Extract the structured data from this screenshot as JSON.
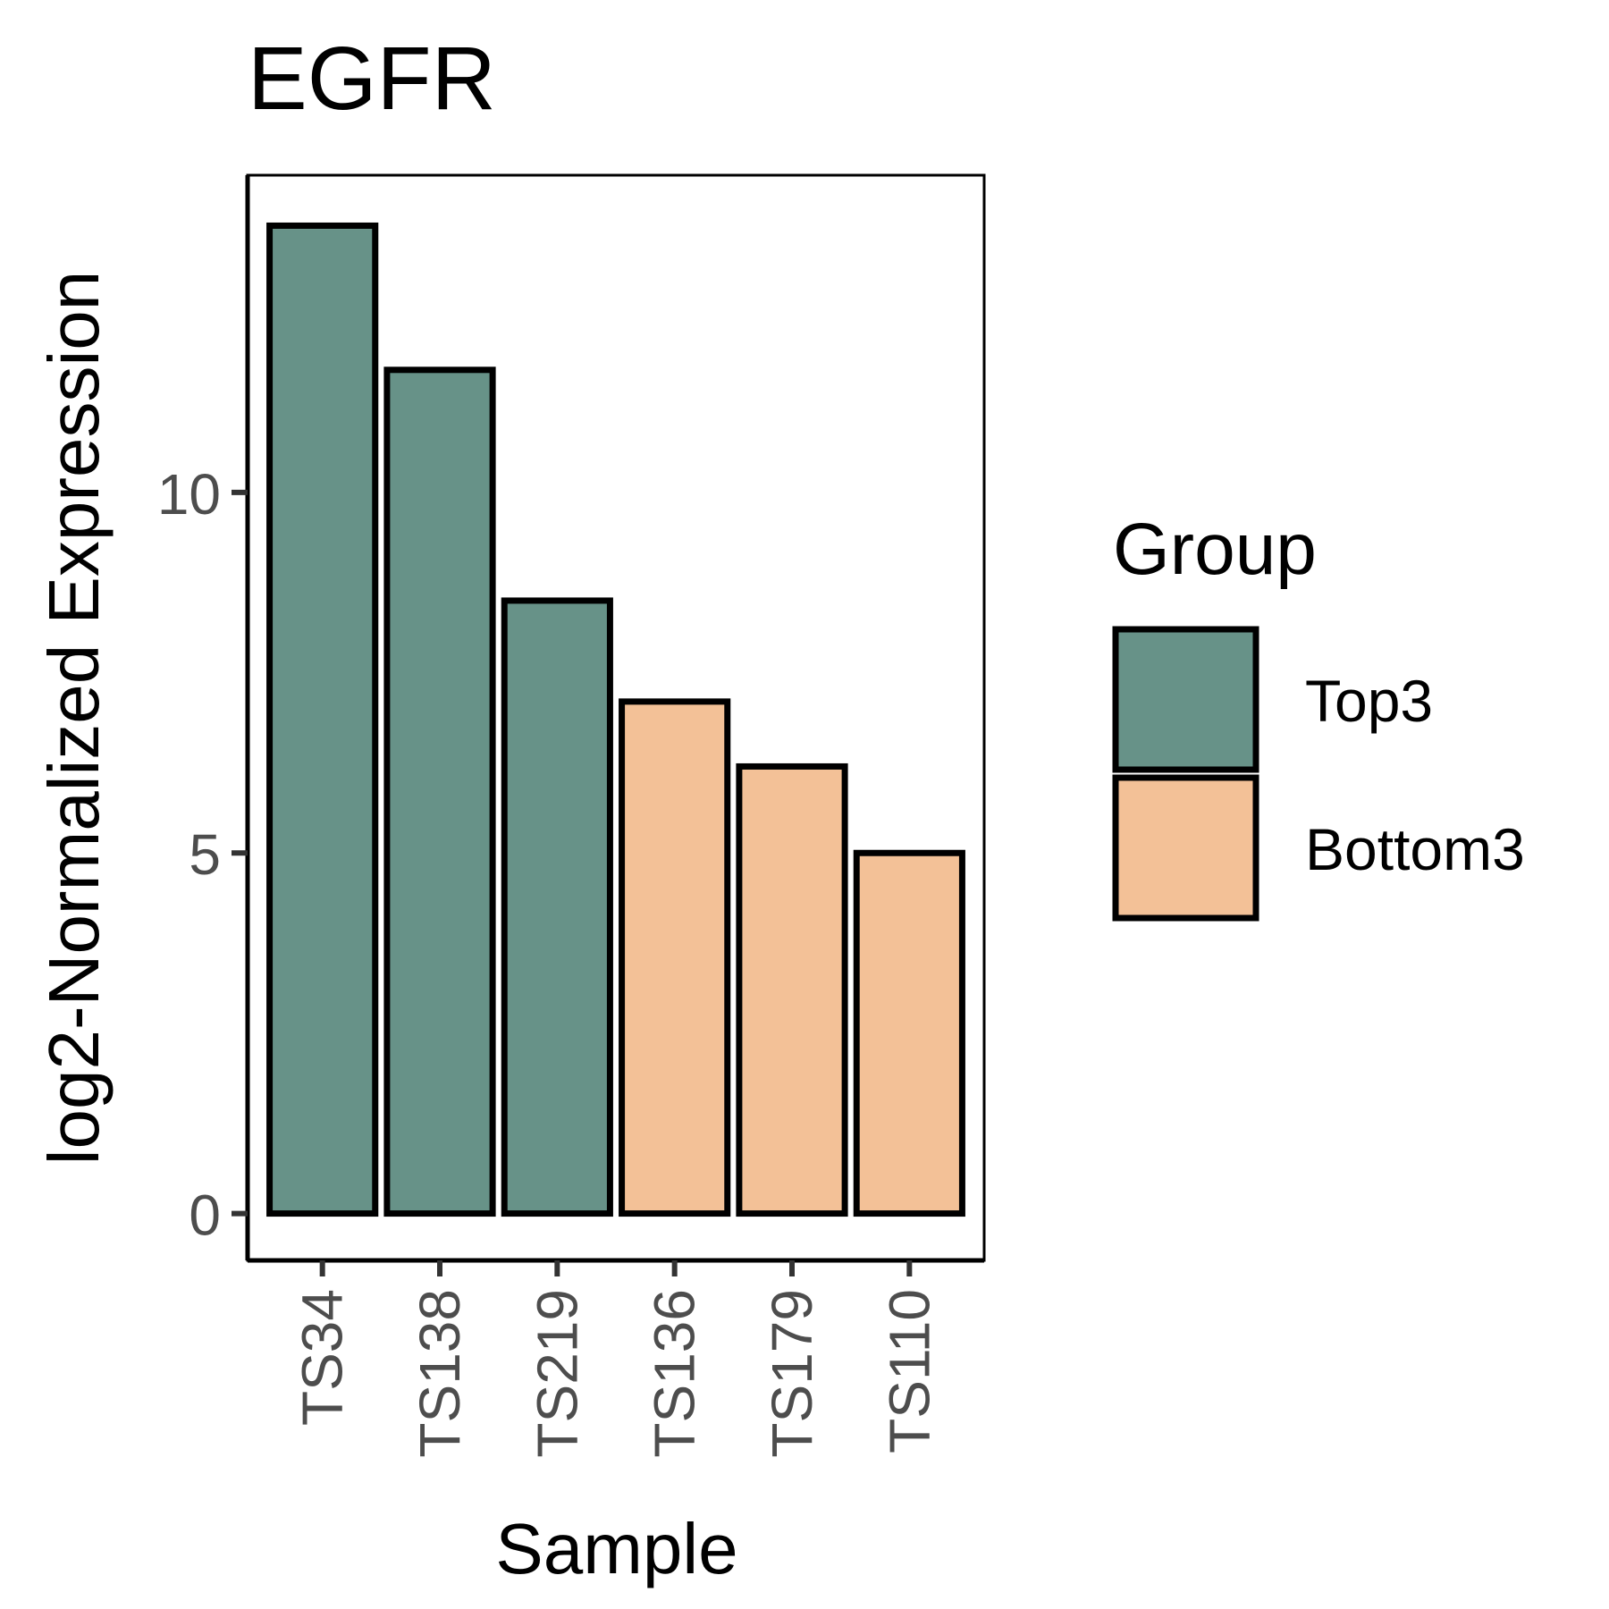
{
  "chart_data": {
    "type": "bar",
    "title": "EGFR",
    "xlabel": "Sample",
    "ylabel": "log2-Normalized Expression",
    "categories": [
      "TS34",
      "TS138",
      "TS219",
      "TS136",
      "TS179",
      "TS110"
    ],
    "values": [
      13.7,
      11.7,
      8.5,
      7.1,
      6.2,
      5.0
    ],
    "groups": [
      "Top3",
      "Top3",
      "Top3",
      "Bottom3",
      "Bottom3",
      "Bottom3"
    ],
    "yticks": [
      0,
      5,
      10
    ],
    "ytick_labels": [
      "0",
      "5",
      "10"
    ],
    "ylim": [
      -0.65,
      14.4
    ],
    "grid": false,
    "legend": {
      "title": "Group",
      "placement": "right",
      "entries": [
        {
          "label": "Top3",
          "color": "#679288"
        },
        {
          "label": "Bottom3",
          "color": "#F3C197"
        }
      ]
    },
    "bar_outline_color": "#000000"
  }
}
